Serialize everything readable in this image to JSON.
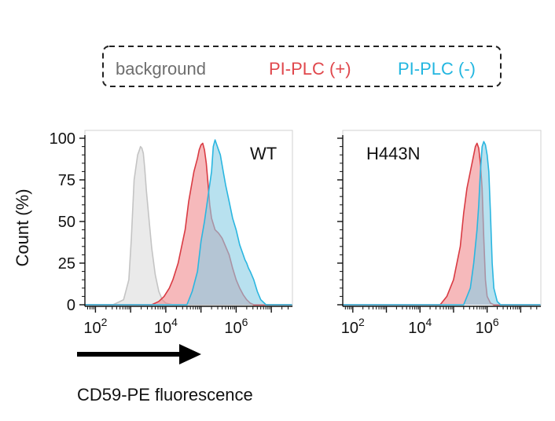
{
  "legend": {
    "items": [
      {
        "label": "background",
        "color": "#6e6e6e"
      },
      {
        "label": "PI-PLC (+)",
        "color": "#e0474c"
      },
      {
        "label": "PI-PLC (-)",
        "color": "#22b6e0"
      }
    ]
  },
  "shared_xlabel": "CD59-PE fluorescence",
  "chart_data": [
    {
      "type": "area",
      "title": "WT",
      "xlabel": "CD59-PE fluorescence",
      "ylabel": "Count (%)",
      "xscale": "log10",
      "xlim_log10": [
        1.7,
        7.6
      ],
      "ylim": [
        0,
        100
      ],
      "xtick_labels": [
        {
          "base": "10",
          "exp": "2",
          "log": 2
        },
        {
          "base": "10",
          "exp": "4",
          "log": 4
        },
        {
          "base": "10",
          "exp": "6",
          "log": 6
        }
      ],
      "ytick_labels": [
        "0",
        "25",
        "50",
        "75",
        "100"
      ],
      "yticks": [
        0,
        25,
        50,
        75,
        100
      ],
      "series": [
        {
          "name": "background",
          "fill": "#dcdcdc",
          "stroke": "#c4c4c4",
          "x_log10": [
            1.7,
            2.5,
            2.8,
            2.95,
            3.02,
            3.1,
            3.2,
            3.25,
            3.28,
            3.32,
            3.36,
            3.4,
            3.45,
            3.55,
            3.6,
            3.7,
            3.8,
            3.9,
            4.0,
            4.2,
            7.6
          ],
          "y": [
            0,
            0,
            3,
            15,
            40,
            75,
            90,
            93,
            95,
            94,
            91,
            82,
            68,
            45,
            34,
            18,
            8,
            3,
            1,
            0,
            0
          ]
        },
        {
          "name": "PI-PLC (+)",
          "fill": "#f08a8e",
          "stroke": "#d93b43",
          "x_log10": [
            1.7,
            3.6,
            3.8,
            3.95,
            4.1,
            4.2,
            4.35,
            4.55,
            4.65,
            4.8,
            4.9,
            4.95,
            5.0,
            5.05,
            5.1,
            5.15,
            5.2,
            5.25,
            5.3,
            5.4,
            5.5,
            5.6,
            5.7,
            5.8,
            5.9,
            6.0,
            6.1,
            6.2,
            6.3,
            6.4,
            6.5,
            7.6
          ],
          "y": [
            0,
            0,
            2,
            5,
            10,
            15,
            25,
            45,
            62,
            80,
            88,
            93,
            96,
            97,
            93,
            85,
            73,
            60,
            52,
            45,
            43,
            40,
            35,
            30,
            22,
            15,
            10,
            6,
            3,
            1,
            0,
            0
          ]
        },
        {
          "name": "PI-PLC (-)",
          "fill": "#88cde5",
          "stroke": "#2ab6e0",
          "x_log10": [
            1.7,
            4.6,
            4.75,
            4.9,
            5.0,
            5.1,
            5.2,
            5.3,
            5.35,
            5.4,
            5.45,
            5.5,
            5.55,
            5.6,
            5.65,
            5.7,
            5.8,
            5.9,
            6.0,
            6.1,
            6.2,
            6.25,
            6.3,
            6.35,
            6.4,
            6.5,
            6.6,
            6.7,
            6.85,
            7.6
          ],
          "y": [
            0,
            0,
            8,
            20,
            38,
            50,
            65,
            80,
            95,
            99,
            96,
            93,
            90,
            84,
            78,
            72,
            62,
            52,
            45,
            36,
            30,
            27,
            25,
            22,
            20,
            15,
            8,
            3,
            0,
            0
          ]
        }
      ]
    },
    {
      "type": "area",
      "title": "H443N",
      "xlabel": "CD59-PE fluorescence",
      "ylabel": "Count (%)",
      "xscale": "log10",
      "xlim_log10": [
        1.7,
        7.6
      ],
      "ylim": [
        0,
        100
      ],
      "xtick_labels": [
        {
          "base": "10",
          "exp": "2",
          "log": 2
        },
        {
          "base": "10",
          "exp": "4",
          "log": 4
        },
        {
          "base": "10",
          "exp": "6",
          "log": 6
        }
      ],
      "ytick_labels": [
        "",
        "",
        "",
        "",
        ""
      ],
      "yticks": [
        0,
        25,
        50,
        75,
        100
      ],
      "series": [
        {
          "name": "PI-PLC (+)",
          "fill": "#f08a8e",
          "stroke": "#d93b43",
          "x_log10": [
            1.7,
            4.6,
            4.8,
            5.0,
            5.2,
            5.3,
            5.4,
            5.5,
            5.6,
            5.65,
            5.7,
            5.75,
            5.8,
            5.85,
            5.9,
            5.95,
            6.0,
            6.1,
            6.2,
            7.6
          ],
          "y": [
            0,
            0,
            5,
            15,
            35,
            55,
            70,
            80,
            90,
            95,
            97,
            94,
            85,
            70,
            40,
            15,
            5,
            1,
            0,
            0
          ]
        },
        {
          "name": "PI-PLC (-)",
          "fill": "#88cde5",
          "stroke": "#2ab6e0",
          "x_log10": [
            1.7,
            5.3,
            5.5,
            5.6,
            5.7,
            5.75,
            5.8,
            5.85,
            5.9,
            5.95,
            6.0,
            6.05,
            6.1,
            6.15,
            6.2,
            6.3,
            6.4,
            7.6
          ],
          "y": [
            0,
            0,
            10,
            25,
            45,
            60,
            80,
            95,
            98,
            96,
            90,
            80,
            55,
            25,
            10,
            2,
            0,
            0
          ]
        }
      ]
    }
  ]
}
